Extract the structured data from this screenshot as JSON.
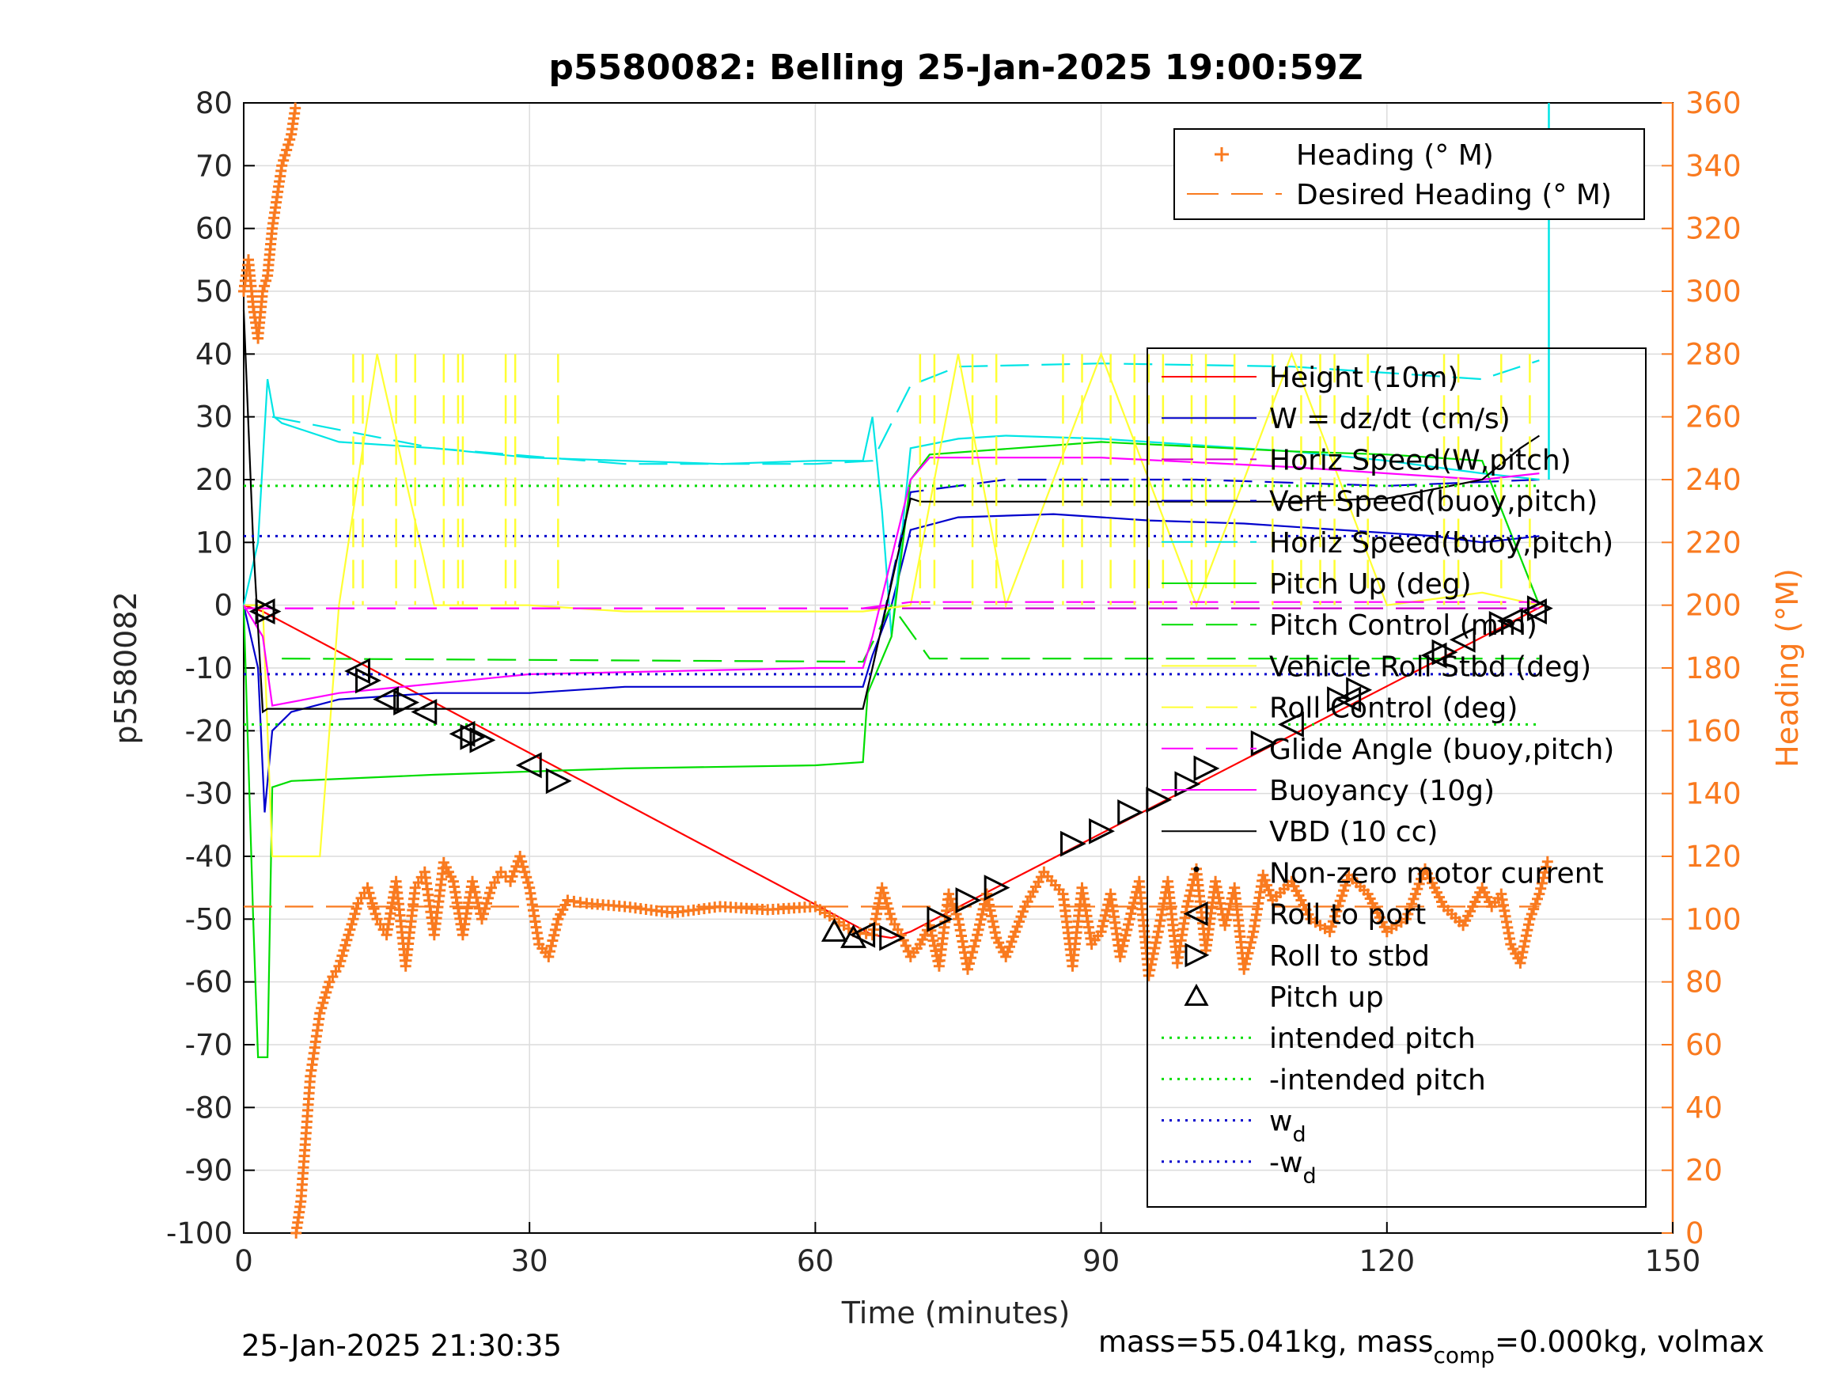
{
  "chart_data": {
    "type": "line",
    "title": "p5580082: Belling 25-Jan-2025 19:00:59Z",
    "xlabel": "Time (minutes)",
    "ylabel": "p5580082",
    "y2label": "Heading (°M)",
    "xlim": [
      0,
      150
    ],
    "ylim": [
      -100,
      80
    ],
    "y2lim": [
      0,
      360
    ],
    "xticks": [
      "0",
      "30",
      "60",
      "90",
      "120",
      "150"
    ],
    "yticks": [
      "80",
      "70",
      "60",
      "50",
      "40",
      "30",
      "20",
      "10",
      "0",
      "-10",
      "-20",
      "-30",
      "-40",
      "-50",
      "-60",
      "-70",
      "-80",
      "-90",
      "-100"
    ],
    "y2ticks": [
      "360",
      "340",
      "320",
      "300",
      "280",
      "260",
      "240",
      "220",
      "200",
      "180",
      "160",
      "140",
      "120",
      "100",
      "80",
      "60",
      "40",
      "20",
      "0"
    ],
    "grid": true,
    "footer_left": "25-Jan-2025 21:30:35",
    "footer_right": {
      "prefix": "mass=55.041kg, mass",
      "sub": "comp",
      "suffix": "=0.000kg, volmax"
    },
    "legend_heading": [
      {
        "label": "Heading (° M)",
        "color": "#f97a1f",
        "style": "plus"
      },
      {
        "label": "Desired Heading (° M)",
        "color": "#f97a1f",
        "style": "dash"
      }
    ],
    "legend_main": [
      {
        "label": "Height (10m)",
        "color": "#ff0000",
        "style": "solid"
      },
      {
        "label": "W = dz/dt (cm/s)",
        "color": "#0000cc",
        "style": "solid"
      },
      {
        "label": "Horiz Speed(W,pitch)",
        "color": "#cc00cc",
        "style": "dash"
      },
      {
        "label": "Vert Speed(buoy,pitch)",
        "color": "#0000cc",
        "style": "dash"
      },
      {
        "label": "Horiz Speed(buoy,pitch)",
        "color": "#00e5e5",
        "style": "dash"
      },
      {
        "label": "Pitch Up (deg)",
        "color": "#00dd00",
        "style": "solid"
      },
      {
        "label": "Pitch Control (mm)",
        "color": "#00dd00",
        "style": "dash"
      },
      {
        "label": "Vehicle Roll Stbd (deg)",
        "color": "#ffff33",
        "style": "solid"
      },
      {
        "label": "Roll Control (deg)",
        "color": "#ffff33",
        "style": "dash"
      },
      {
        "label": "Glide Angle (buoy,pitch)",
        "color": "#ff00ff",
        "style": "dash"
      },
      {
        "label": "Buoyancy (10g)",
        "color": "#ff00ff",
        "style": "solid"
      },
      {
        "label": "VBD (10 cc)",
        "color": "#000000",
        "style": "solid"
      },
      {
        "label": "Non-zero motor current",
        "color": "#000000",
        "style": "dot"
      },
      {
        "label": "Roll to port",
        "color": "#000000",
        "style": "tri-left"
      },
      {
        "label": "Roll to stbd",
        "color": "#000000",
        "style": "tri-right"
      },
      {
        "label": "Pitch up",
        "color": "#000000",
        "style": "tri-up"
      },
      {
        "label": "intended pitch",
        "color": "#00dd00",
        "style": "dotted"
      },
      {
        "label": "-intended pitch",
        "color": "#00dd00",
        "style": "dotted"
      },
      {
        "label": "w",
        "sub": "d",
        "color": "#0000cc",
        "style": "dotted"
      },
      {
        "label": "-w",
        "sub": "d",
        "color": "#0000cc",
        "style": "dotted"
      }
    ],
    "series": [
      {
        "name": "Height (10m)",
        "color": "#ff0000",
        "x": [
          0,
          2,
          66,
          68,
          70,
          136.5
        ],
        "y": [
          0,
          -1,
          -52.5,
          -53,
          -52,
          0
        ]
      },
      {
        "name": "W = dz/dt (cm/s)",
        "color": "#0000cc",
        "x": [
          0,
          1.5,
          2.2,
          3,
          5,
          10,
          20,
          30,
          40,
          50,
          60,
          65,
          66,
          68,
          70,
          75,
          85,
          95,
          105,
          115,
          125,
          130,
          136
        ],
        "y": [
          0,
          -10,
          -33,
          -20,
          -17,
          -15,
          -14,
          -14,
          -13,
          -13,
          -13,
          -13,
          -8,
          0,
          12,
          14,
          14.5,
          13.5,
          13,
          12,
          11,
          10,
          11
        ]
      },
      {
        "name": "Horiz Speed(W,pitch)",
        "color": "#cc00cc",
        "x": [
          0,
          136
        ],
        "y": [
          -0.5,
          -0.5
        ]
      },
      {
        "name": "Vert Speed(buoy,pitch)",
        "color": "#0000cc",
        "x": [
          66,
          70,
          80,
          100,
          120,
          136
        ],
        "y": [
          -10,
          18,
          20,
          20,
          19,
          20
        ]
      },
      {
        "name": "Horiz Speed(buoy,pitch)",
        "color": "#00e5e5",
        "x": [
          0,
          1.5,
          2.5,
          3.2,
          4,
          10,
          20,
          30,
          40,
          50,
          60,
          65,
          66,
          67,
          68,
          70,
          75,
          80,
          90,
          100,
          110,
          120,
          130,
          136
        ],
        "y": [
          0,
          10,
          36,
          30,
          29,
          26,
          25,
          23.5,
          23,
          22.5,
          23,
          23,
          30,
          15,
          -5,
          25,
          26.5,
          27,
          26.5,
          25.5,
          24.5,
          23,
          21,
          20
        ]
      },
      {
        "name": "Horiz Speed(buoy,pitch) dash",
        "color": "#00e5e5",
        "x": [
          3,
          20,
          40,
          60,
          66,
          70,
          75,
          90,
          110,
          130,
          136
        ],
        "y": [
          30,
          25,
          22.5,
          22.5,
          23,
          35,
          38,
          38.5,
          38,
          36,
          39
        ]
      },
      {
        "name": "Pitch Up (deg)",
        "color": "#00dd00",
        "x": [
          0,
          1,
          1.5,
          2.5,
          3,
          5,
          20,
          40,
          60,
          65,
          65.5,
          68,
          70,
          72,
          90,
          110,
          120,
          130,
          136
        ],
        "y": [
          0,
          -50,
          -72,
          -72,
          -29,
          -28,
          -27,
          -26,
          -25.5,
          -25,
          -14,
          -5,
          20,
          24,
          26,
          24.5,
          24,
          23,
          0
        ]
      },
      {
        "name": "Pitch Control (mm)",
        "color": "#00dd00",
        "x": [
          4,
          65,
          68,
          72,
          136
        ],
        "y": [
          -8.5,
          -9,
          0,
          -8.5,
          -8.5
        ]
      },
      {
        "name": "Roll Control (deg)",
        "color": "#ffff33",
        "x": [
          0,
          2,
          3,
          8,
          10,
          14,
          20,
          30,
          40,
          50,
          60,
          65,
          70,
          75,
          80,
          90,
          100,
          110,
          120,
          130,
          136
        ],
        "y": [
          0,
          0,
          -40,
          -40,
          0,
          40,
          0,
          0,
          -1,
          -1,
          -1,
          -1,
          0,
          40,
          0,
          40,
          0,
          40,
          0,
          2,
          0
        ]
      },
      {
        "name": "Glide Angle (buoy,pitch)",
        "color": "#ff00ff",
        "x": [
          0,
          65,
          70,
          136
        ],
        "y": [
          -0.5,
          -0.5,
          0.5,
          0.5
        ]
      },
      {
        "name": "Buoyancy (10g)",
        "color": "#ff00ff",
        "x": [
          0,
          2,
          3,
          10,
          30,
          60,
          65,
          66,
          70,
          72,
          90,
          110,
          120,
          130,
          136
        ],
        "y": [
          0,
          -5,
          -16,
          -14,
          -11,
          -10,
          -10,
          -5,
          20,
          23.5,
          23.5,
          22,
          21,
          20,
          21
        ]
      },
      {
        "name": "VBD (10 cc)",
        "color": "#000000",
        "x": [
          0,
          1,
          2,
          2.5,
          65,
          66,
          70,
          71,
          90,
          110,
          120,
          130,
          134,
          136
        ],
        "y": [
          47,
          10,
          -17,
          -16.5,
          -16.5,
          -10,
          17,
          16.5,
          16.5,
          16.5,
          17,
          20,
          25,
          27
        ]
      },
      {
        "name": "intended pitch",
        "color": "#00dd00",
        "x": [
          0,
          136
        ],
        "y": [
          19,
          19
        ]
      },
      {
        "name": "-intended pitch",
        "color": "#00dd00",
        "x": [
          0,
          136
        ],
        "y": [
          -19,
          -19
        ]
      },
      {
        "name": "w_d",
        "color": "#0000cc",
        "x": [
          0,
          136
        ],
        "y": [
          11,
          11
        ]
      },
      {
        "name": "-w_d",
        "color": "#0000cc",
        "x": [
          0,
          136
        ],
        "y": [
          -11,
          -11
        ]
      },
      {
        "name": "Desired Heading (° M)",
        "axis": "y2",
        "color": "#f97a1f",
        "x": [
          0,
          136
        ],
        "y": [
          104,
          104
        ]
      }
    ],
    "heading": {
      "name": "Heading (° M)",
      "axis": "y2",
      "color": "#f97a1f",
      "x": [
        0,
        0.5,
        1,
        1.5,
        2,
        2.5,
        3,
        3.5,
        4,
        4.5,
        5,
        5.5,
        5.5,
        6,
        6.5,
        7,
        8,
        9,
        10,
        11,
        12,
        13,
        14,
        15,
        16,
        17,
        18,
        19,
        20,
        21,
        22,
        23,
        24,
        25,
        26,
        27,
        28,
        29,
        30,
        31,
        32,
        33,
        34,
        36,
        40,
        45,
        50,
        55,
        60,
        62,
        64,
        66,
        67,
        68,
        69,
        70,
        71,
        72,
        73,
        74,
        75,
        76,
        77,
        78,
        79,
        80,
        82,
        84,
        86,
        87,
        88,
        89,
        90,
        91,
        92,
        93,
        94,
        95,
        96,
        97,
        98,
        99,
        100,
        101,
        102,
        103,
        104,
        105,
        106,
        107,
        108,
        110,
        112,
        114,
        116,
        118,
        120,
        122,
        124,
        126,
        128,
        130,
        131,
        132,
        133,
        134,
        135,
        136,
        137
      ],
      "y": [
        300,
        310,
        295,
        285,
        300,
        305,
        320,
        330,
        340,
        345,
        350,
        360,
        0,
        10,
        30,
        50,
        70,
        80,
        85,
        95,
        105,
        110,
        100,
        95,
        112,
        85,
        110,
        115,
        95,
        118,
        112,
        95,
        112,
        100,
        110,
        115,
        112,
        120,
        110,
        92,
        88,
        100,
        106,
        105,
        104,
        102,
        104,
        103,
        104,
        100,
        96,
        95,
        110,
        100,
        95,
        88,
        92,
        98,
        85,
        108,
        100,
        84,
        95,
        108,
        94,
        88,
        104,
        115,
        108,
        85,
        110,
        92,
        96,
        108,
        88,
        100,
        112,
        82,
        96,
        112,
        86,
        104,
        116,
        90,
        112,
        98,
        110,
        84,
        96,
        114,
        106,
        112,
        100,
        96,
        114,
        108,
        96,
        100,
        116,
        104,
        98,
        110,
        104,
        108,
        92,
        86,
        100,
        108,
        120
      ]
    },
    "markers": [
      {
        "type": "tri-left",
        "pts": [
          [
            2,
            -1
          ],
          [
            12,
            -10.5
          ],
          [
            15,
            -15
          ],
          [
            19,
            -17
          ],
          [
            23,
            -20.5
          ],
          [
            30,
            -25.5
          ],
          [
            65,
            -52.5
          ],
          [
            110,
            -19
          ],
          [
            116,
            -15
          ],
          [
            125,
            -8
          ],
          [
            128,
            -5.5
          ],
          [
            133,
            -2.5
          ],
          [
            135.5,
            -1
          ]
        ]
      },
      {
        "type": "tri-right",
        "pts": [
          [
            2.5,
            -1
          ],
          [
            13,
            -12
          ],
          [
            17,
            -15.5
          ],
          [
            24,
            -21
          ],
          [
            25,
            -21.5
          ],
          [
            33,
            -28
          ],
          [
            68,
            -53
          ],
          [
            73,
            -50
          ],
          [
            76,
            -47
          ],
          [
            79,
            -45
          ],
          [
            87,
            -38
          ],
          [
            90,
            -36
          ],
          [
            93,
            -33
          ],
          [
            96,
            -31
          ],
          [
            99,
            -28.5
          ],
          [
            101,
            -26
          ],
          [
            107,
            -22
          ],
          [
            115,
            -15
          ],
          [
            117,
            -13.5
          ],
          [
            126,
            -7.5
          ],
          [
            132,
            -3
          ],
          [
            136,
            -0.5
          ]
        ]
      },
      {
        "type": "tri-up",
        "pts": [
          [
            62,
            -52
          ],
          [
            64,
            -53
          ]
        ]
      }
    ],
    "cyan_spike": {
      "x": 137,
      "y": [
        80,
        20
      ]
    },
    "roll_spikes": [
      11.5,
      12.5,
      16,
      18,
      21,
      22.5,
      23,
      27.5,
      28.5,
      33,
      71,
      72.5,
      76.5,
      79,
      86,
      88,
      91,
      93.5,
      95,
      96.5,
      99.5,
      101,
      104,
      108,
      111,
      113,
      114.5,
      118,
      126,
      127.5,
      132,
      135
    ]
  }
}
